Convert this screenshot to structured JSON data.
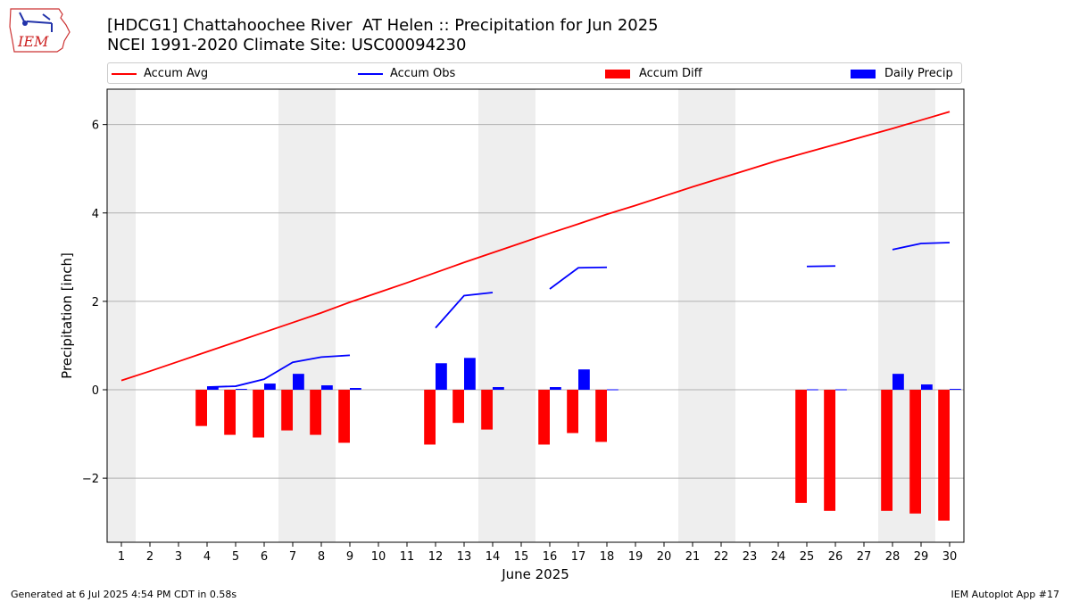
{
  "header": {
    "title_line1": "[HDCG1] Chattahoochee River  AT Helen :: Precipitation for Jun 2025",
    "title_line2": "NCEI 1991-2020 Climate Site: USC00094230",
    "logo_text": "IEM"
  },
  "footer": {
    "left": "Generated at 6 Jul 2025 4:54 PM CDT in 0.58s",
    "right": "IEM Autoplot App #17"
  },
  "colors": {
    "accum_avg": "#ff0000",
    "accum_obs": "#0000ff",
    "accum_diff": "#ff0000",
    "daily_precip": "#0000ff",
    "weekend_shade": "#eeeeee",
    "grid": "#b0b0b0"
  },
  "chart_data": {
    "type": "bar",
    "xlabel": "June 2025",
    "ylabel": "Precipitation [inch]",
    "xlim": [
      0.5,
      30.5
    ],
    "ylim": [
      -3.45,
      6.8
    ],
    "yticks": [
      -2,
      0,
      2,
      4,
      6
    ],
    "ytick_labels": [
      "−2",
      "0",
      "2",
      "4",
      "6"
    ],
    "grid": "horizontal",
    "days": [
      1,
      2,
      3,
      4,
      5,
      6,
      7,
      8,
      9,
      10,
      11,
      12,
      13,
      14,
      15,
      16,
      17,
      18,
      19,
      20,
      21,
      22,
      23,
      24,
      25,
      26,
      27,
      28,
      29,
      30
    ],
    "xtick_labels": [
      "1",
      "2",
      "3",
      "4",
      "5",
      "6",
      "7",
      "8",
      "9",
      "10",
      "11",
      "12",
      "13",
      "14",
      "15",
      "16",
      "17",
      "18",
      "19",
      "20",
      "21",
      "22",
      "23",
      "24",
      "25",
      "26",
      "27",
      "28",
      "29",
      "30"
    ],
    "weekend_shading": [
      [
        0.5,
        1.5
      ],
      [
        6.5,
        8.5
      ],
      [
        13.5,
        15.5
      ],
      [
        20.5,
        22.5
      ],
      [
        27.5,
        29.5
      ]
    ],
    "legend": {
      "placement": "top",
      "entries": [
        "Accum Avg",
        "Accum Obs",
        "Accum Diff",
        "Daily Precip"
      ]
    },
    "series": [
      {
        "name": "Accum Avg",
        "kind": "line",
        "values": [
          0.21,
          0.42,
          0.64,
          0.86,
          1.08,
          1.3,
          1.52,
          1.74,
          1.98,
          2.2,
          2.42,
          2.65,
          2.88,
          3.1,
          3.32,
          3.54,
          3.75,
          3.97,
          4.17,
          4.38,
          4.59,
          4.79,
          4.99,
          5.19,
          5.37,
          5.55,
          5.73,
          5.91,
          6.1,
          6.29
        ]
      },
      {
        "name": "Accum Obs",
        "kind": "line",
        "values": [
          null,
          null,
          null,
          0.06,
          0.08,
          0.24,
          0.62,
          0.74,
          0.78,
          null,
          null,
          1.4,
          2.13,
          2.2,
          null,
          2.28,
          2.76,
          2.77,
          null,
          null,
          null,
          null,
          null,
          null,
          2.79,
          2.8,
          null,
          3.17,
          3.31,
          3.33
        ]
      },
      {
        "name": "Accum Diff",
        "kind": "bar",
        "offset": -0.2,
        "values": [
          null,
          null,
          null,
          -0.82,
          -1.02,
          -1.08,
          -0.92,
          -1.02,
          -1.2,
          null,
          null,
          -1.24,
          -0.75,
          -0.9,
          null,
          -1.24,
          -0.98,
          -1.18,
          null,
          null,
          null,
          null,
          null,
          null,
          -2.56,
          -2.74,
          null,
          -2.74,
          -2.8,
          -2.96
        ]
      },
      {
        "name": "Daily Precip",
        "kind": "bar",
        "offset": 0.2,
        "values": [
          null,
          null,
          null,
          0.06,
          0.02,
          0.14,
          0.36,
          0.1,
          0.04,
          null,
          null,
          0.6,
          0.72,
          0.06,
          null,
          0.06,
          0.46,
          0.01,
          null,
          null,
          null,
          null,
          null,
          null,
          0.01,
          0.01,
          null,
          0.36,
          0.12,
          0.02
        ]
      }
    ]
  }
}
